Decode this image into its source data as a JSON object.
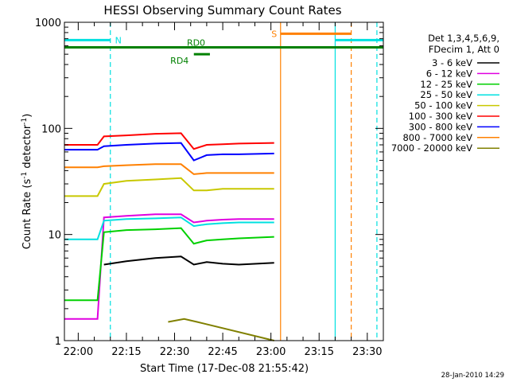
{
  "chart_data": {
    "type": "line",
    "title": "HESSI Observing Summary Count Rates",
    "xlabel": "Start Time (17-Dec-08 21:55:42)",
    "ylabel_prefix": "Count Rate (s",
    "ylabel_sup1": "-1",
    "ylabel_mid": " detector",
    "ylabel_sup2": "-1",
    "ylabel_suffix": ")",
    "yscale": "log",
    "ylim": [
      1,
      1000
    ],
    "xlim": [
      "21:55:42",
      "23:35:00"
    ],
    "x_ticks": [
      "22:00",
      "22:15",
      "22:30",
      "22:45",
      "23:00",
      "23:15",
      "23:30"
    ],
    "y_ticks": [
      "1",
      "10",
      "100",
      "1000"
    ],
    "legend": {
      "header1": "Det 1,3,4,5,6,9,",
      "header2": "FDecim 1, Att 0",
      "placement": "right"
    },
    "series": [
      {
        "name": "3 - 6 keV",
        "color": "#000000",
        "points": [
          [
            "22:08",
            5.2
          ],
          [
            "22:15",
            5.6
          ],
          [
            "22:24",
            6.0
          ],
          [
            "22:32",
            6.2
          ],
          [
            "22:36",
            5.2
          ],
          [
            "22:40",
            5.5
          ],
          [
            "22:45",
            5.3
          ],
          [
            "22:50",
            5.2
          ],
          [
            "23:01",
            5.4
          ]
        ]
      },
      {
        "name": "6 - 12 keV",
        "color": "#e000e0",
        "points": [
          [
            "21:55:42",
            1.6
          ],
          [
            "22:06",
            1.6
          ],
          [
            "22:08",
            14.5
          ],
          [
            "22:15",
            15
          ],
          [
            "22:24",
            15.5
          ],
          [
            "22:32",
            15.5
          ],
          [
            "22:36",
            13
          ],
          [
            "22:40",
            13.5
          ],
          [
            "22:45",
            13.8
          ],
          [
            "22:50",
            14
          ],
          [
            "23:01",
            14
          ]
        ]
      },
      {
        "name": "12 - 25 keV",
        "color": "#00d000",
        "points": [
          [
            "21:55:42",
            2.4
          ],
          [
            "22:06",
            2.4
          ],
          [
            "22:08",
            10.5
          ],
          [
            "22:15",
            11
          ],
          [
            "22:24",
            11.2
          ],
          [
            "22:32",
            11.5
          ],
          [
            "22:36",
            8.2
          ],
          [
            "22:40",
            8.8
          ],
          [
            "22:45",
            9
          ],
          [
            "22:50",
            9.2
          ],
          [
            "23:01",
            9.5
          ]
        ]
      },
      {
        "name": "25 - 50 keV",
        "color": "#00e0e0",
        "points": [
          [
            "21:55:42",
            9
          ],
          [
            "22:06",
            9
          ],
          [
            "22:08",
            13.5
          ],
          [
            "22:15",
            14
          ],
          [
            "22:24",
            14.2
          ],
          [
            "22:32",
            14.5
          ],
          [
            "22:36",
            12
          ],
          [
            "22:40",
            12.5
          ],
          [
            "22:45",
            12.8
          ],
          [
            "22:50",
            13
          ],
          [
            "23:01",
            13
          ]
        ]
      },
      {
        "name": "50 - 100 keV",
        "color": "#c8c800",
        "points": [
          [
            "21:55:42",
            23
          ],
          [
            "22:06",
            23
          ],
          [
            "22:08",
            30
          ],
          [
            "22:15",
            32
          ],
          [
            "22:24",
            33
          ],
          [
            "22:32",
            34
          ],
          [
            "22:36",
            26
          ],
          [
            "22:40",
            26
          ],
          [
            "22:45",
            27
          ],
          [
            "22:50",
            27
          ],
          [
            "23:01",
            27
          ]
        ]
      },
      {
        "name": "100 - 300 keV",
        "color": "#ff0000",
        "points": [
          [
            "21:55:42",
            70
          ],
          [
            "22:06",
            70
          ],
          [
            "22:08",
            84
          ],
          [
            "22:15",
            86
          ],
          [
            "22:24",
            89
          ],
          [
            "22:32",
            90
          ],
          [
            "22:36",
            64
          ],
          [
            "22:40",
            70
          ],
          [
            "22:45",
            71
          ],
          [
            "22:50",
            72
          ],
          [
            "23:01",
            73
          ]
        ]
      },
      {
        "name": "300 - 800 keV",
        "color": "#0000ff",
        "points": [
          [
            "21:55:42",
            63
          ],
          [
            "22:06",
            63
          ],
          [
            "22:08",
            68
          ],
          [
            "22:15",
            70
          ],
          [
            "22:24",
            72
          ],
          [
            "22:32",
            73
          ],
          [
            "22:36",
            50
          ],
          [
            "22:40",
            56
          ],
          [
            "22:45",
            57
          ],
          [
            "22:50",
            57
          ],
          [
            "23:01",
            58
          ]
        ]
      },
      {
        "name": "800 - 7000 keV",
        "color": "#ff8000",
        "points": [
          [
            "21:55:42",
            43
          ],
          [
            "22:06",
            43
          ],
          [
            "22:08",
            44
          ],
          [
            "22:15",
            45
          ],
          [
            "22:24",
            46
          ],
          [
            "22:32",
            46
          ],
          [
            "22:36",
            37
          ],
          [
            "22:40",
            38
          ],
          [
            "22:45",
            38
          ],
          [
            "22:50",
            38
          ],
          [
            "23:01",
            38
          ]
        ]
      },
      {
        "name": "7000 - 20000 keV",
        "color": "#808000",
        "points": [
          [
            "22:28",
            1.5
          ],
          [
            "22:33",
            1.6
          ],
          [
            "22:37",
            1.5
          ],
          [
            "23:01",
            1.0
          ]
        ]
      }
    ],
    "flags": [
      {
        "label": "N",
        "color": "#00e0e0",
        "segments": [
          [
            "21:55:42",
            "22:10"
          ],
          [
            "23:20",
            "23:35:00"
          ]
        ],
        "level": 680
      },
      {
        "label": "S",
        "color": "#ff8000",
        "segments": [
          [
            "23:03",
            "23:25"
          ]
        ],
        "level": 780
      },
      {
        "label": "RD0",
        "color": "#008000",
        "segments": [
          [
            "21:55:42",
            "23:35:00"
          ]
        ],
        "level": 580
      },
      {
        "label": "RD4",
        "color": "#008000",
        "segments": [
          [
            "22:36",
            "22:41"
          ]
        ],
        "level": 500
      }
    ],
    "vlines": [
      {
        "time": "22:10",
        "color": "#00e0e0",
        "style": "dashed"
      },
      {
        "time": "23:03",
        "color": "#ff8000",
        "style": "solid"
      },
      {
        "time": "23:20",
        "color": "#00e0e0",
        "style": "solid"
      },
      {
        "time": "23:25",
        "color": "#ff8000",
        "style": "dashed"
      },
      {
        "time": "23:33",
        "color": "#00e0e0",
        "style": "dashed"
      }
    ],
    "timestamp": "28-Jan-2010 14:29"
  }
}
